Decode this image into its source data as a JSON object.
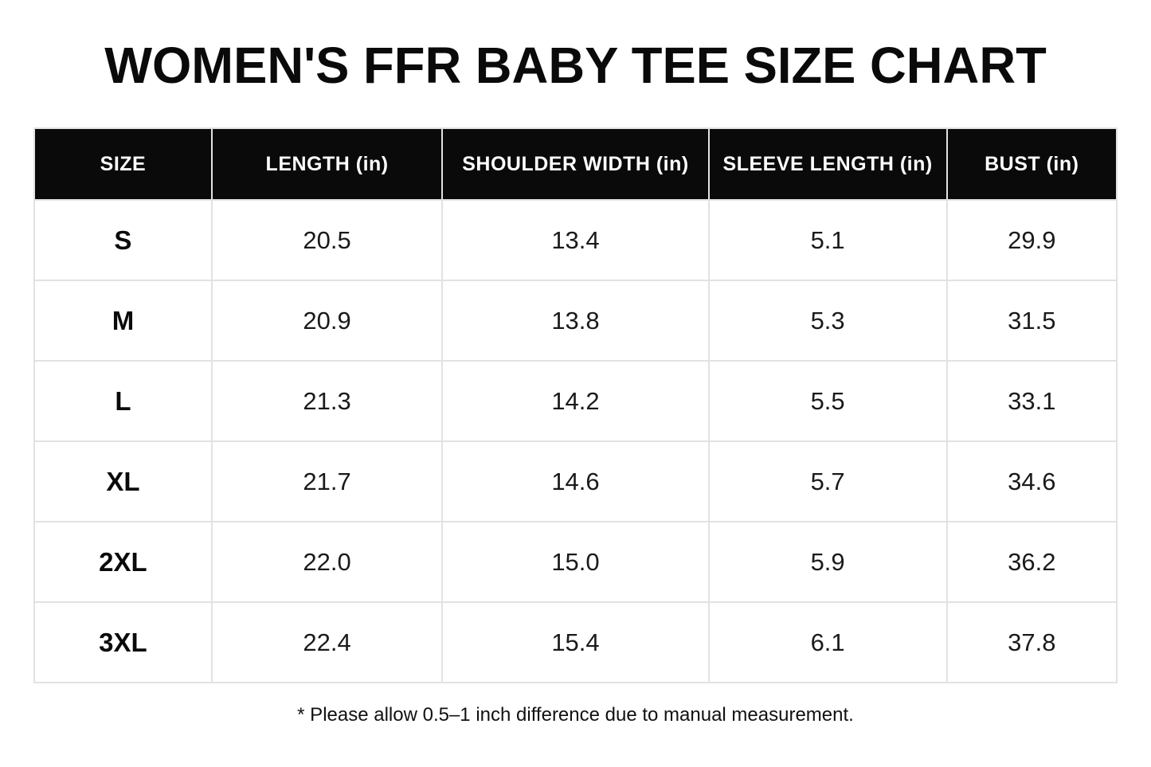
{
  "page": {
    "title": "WOMEN'S FFR BABY TEE SIZE CHART",
    "footnote": "* Please allow 0.5–1 inch difference due to manual measurement."
  },
  "colors": {
    "background": "#ffffff",
    "header_background": "#0a0a0a",
    "header_text": "#ffffff",
    "cell_border": "#e2e2e2",
    "body_text": "#1a1a1a"
  },
  "table": {
    "headers": [
      "SIZE",
      "LENGTH (in)",
      "SHOULDER WIDTH (in)",
      "SLEEVE LENGTH (in)",
      "BUST (in)"
    ],
    "rows": [
      {
        "size": "S",
        "length": "20.5",
        "shoulder_width": "13.4",
        "sleeve_length": "5.1",
        "bust": "29.9"
      },
      {
        "size": "M",
        "length": "20.9",
        "shoulder_width": "13.8",
        "sleeve_length": "5.3",
        "bust": "31.5"
      },
      {
        "size": "L",
        "length": "21.3",
        "shoulder_width": "14.2",
        "sleeve_length": "5.5",
        "bust": "33.1"
      },
      {
        "size": "XL",
        "length": "21.7",
        "shoulder_width": "14.6",
        "sleeve_length": "5.7",
        "bust": "34.6"
      },
      {
        "size": "2XL",
        "length": "22.0",
        "shoulder_width": "15.0",
        "sleeve_length": "5.9",
        "bust": "36.2"
      },
      {
        "size": "3XL",
        "length": "22.4",
        "shoulder_width": "15.4",
        "sleeve_length": "6.1",
        "bust": "37.8"
      }
    ]
  },
  "chart_data": {
    "type": "table",
    "title": "WOMEN'S FFR BABY TEE SIZE CHART",
    "columns": [
      "SIZE",
      "LENGTH (in)",
      "SHOULDER WIDTH (in)",
      "SLEEVE LENGTH (in)",
      "BUST (in)"
    ],
    "rows": [
      [
        "S",
        20.5,
        13.4,
        5.1,
        29.9
      ],
      [
        "M",
        20.9,
        13.8,
        5.3,
        31.5
      ],
      [
        "L",
        21.3,
        14.2,
        5.5,
        33.1
      ],
      [
        "XL",
        21.7,
        14.6,
        5.7,
        34.6
      ],
      [
        "2XL",
        22.0,
        15.0,
        5.9,
        36.2
      ],
      [
        "3XL",
        22.4,
        15.4,
        6.1,
        37.8
      ]
    ],
    "footnote": "* Please allow 0.5–1 inch difference due to manual measurement."
  }
}
